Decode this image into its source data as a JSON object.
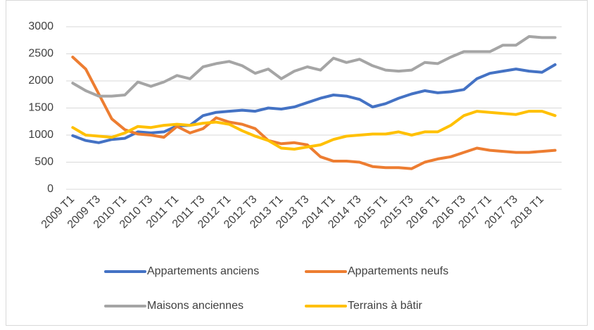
{
  "chart_data": {
    "type": "line",
    "categories": [
      "2009 T1",
      null,
      "2009 T3",
      null,
      "2010 T1",
      null,
      "2010 T3",
      null,
      "2011 T1",
      null,
      "2011 T3",
      null,
      "2012 T1",
      null,
      "2012 T3",
      null,
      "2013 T1",
      null,
      "2013 T3",
      null,
      "2014 T1",
      null,
      "2014 T3",
      null,
      "2015 T1",
      null,
      "2015 T3",
      null,
      "2016 T1",
      null,
      "2016 T3",
      null,
      "2017 T1",
      null,
      "2017 T3",
      null,
      "2018 T1",
      null
    ],
    "series": [
      {
        "name": "Appartements anciens",
        "color": "#4472c4",
        "values": [
          990,
          900,
          860,
          920,
          940,
          1060,
          1040,
          1060,
          1170,
          1180,
          1360,
          1420,
          1440,
          1460,
          1440,
          1500,
          1480,
          1520,
          1600,
          1680,
          1740,
          1720,
          1660,
          1520,
          1580,
          1680,
          1760,
          1820,
          1780,
          1800,
          1840,
          2040,
          2140,
          2180,
          2220,
          2180,
          2160,
          2300
        ]
      },
      {
        "name": "Appartements neufs",
        "color": "#ed7d31",
        "values": [
          2440,
          2220,
          1760,
          1300,
          1100,
          1020,
          1000,
          960,
          1160,
          1040,
          1120,
          1320,
          1240,
          1200,
          1120,
          900,
          840,
          860,
          820,
          600,
          520,
          520,
          500,
          420,
          400,
          400,
          380,
          500,
          560,
          600,
          680,
          760,
          720,
          700,
          680,
          680,
          700,
          720
        ]
      },
      {
        "name": "Maisons anciennes",
        "color": "#a5a5a5",
        "values": [
          1960,
          1820,
          1720,
          1720,
          1740,
          1980,
          1900,
          1980,
          2100,
          2040,
          2260,
          2320,
          2360,
          2280,
          2140,
          2220,
          2040,
          2180,
          2260,
          2200,
          2420,
          2340,
          2400,
          2280,
          2200,
          2180,
          2200,
          2340,
          2320,
          2440,
          2540,
          2540,
          2540,
          2660,
          2660,
          2820,
          2800,
          2800
        ]
      },
      {
        "name": "Terrains à bâtir",
        "color": "#ffc000",
        "values": [
          1140,
          1000,
          980,
          960,
          1040,
          1160,
          1140,
          1180,
          1200,
          1180,
          1220,
          1240,
          1200,
          1080,
          980,
          900,
          760,
          740,
          780,
          820,
          920,
          980,
          1000,
          1020,
          1020,
          1060,
          1000,
          1060,
          1060,
          1180,
          1360,
          1440,
          1420,
          1400,
          1380,
          1440,
          1440,
          1360
        ]
      }
    ],
    "ylim": [
      0,
      3000
    ],
    "yticks": [
      0,
      500,
      1000,
      1500,
      2000,
      2500,
      3000
    ],
    "grid": true,
    "legend": "bottom"
  }
}
